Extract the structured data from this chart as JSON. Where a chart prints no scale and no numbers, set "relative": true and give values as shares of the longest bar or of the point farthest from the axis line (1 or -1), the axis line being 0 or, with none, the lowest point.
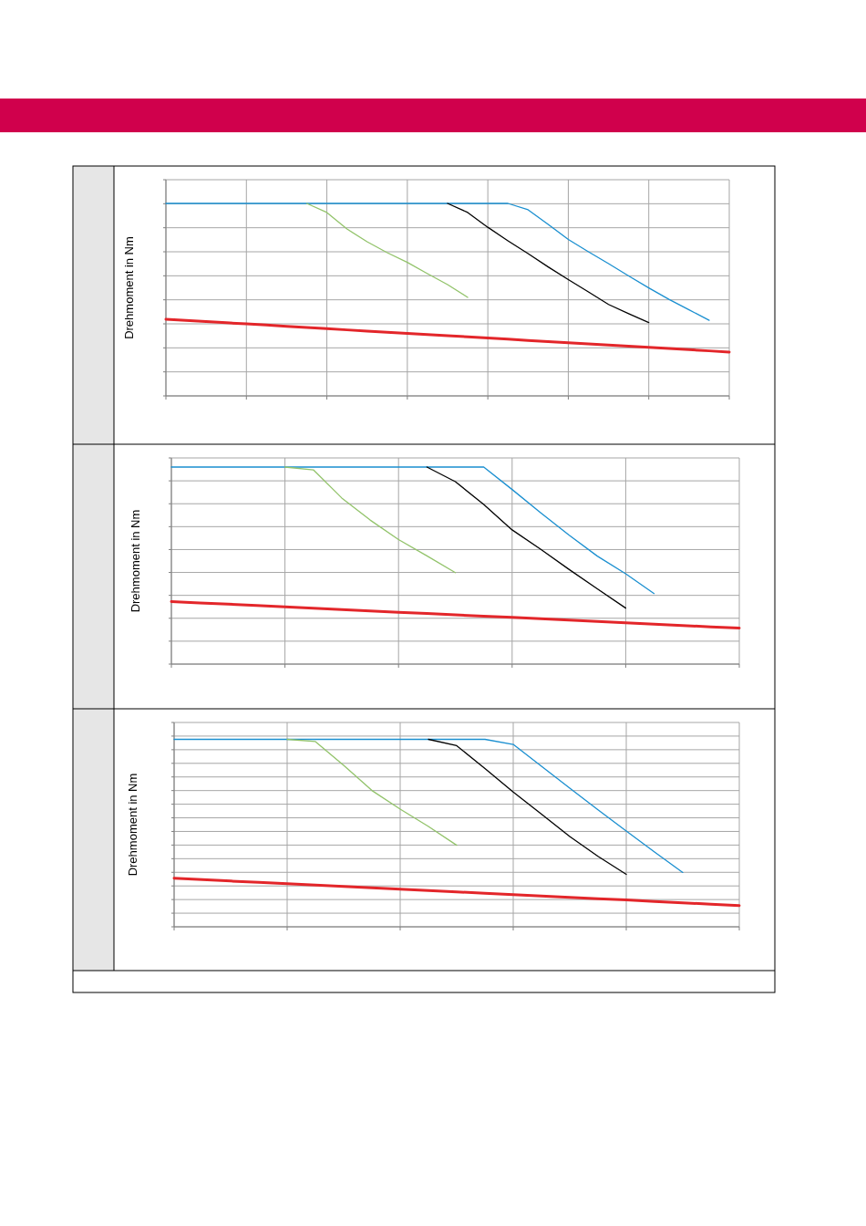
{
  "chart_data": [
    {
      "type": "line",
      "relative": true,
      "ylabel": "Drehmoment in Nm",
      "grid": true,
      "categories": [
        null,
        null,
        null,
        null,
        null,
        null,
        null,
        null,
        null,
        null,
        null,
        null,
        null,
        null,
        null,
        null,
        null,
        null,
        null,
        null,
        null,
        null,
        null,
        null,
        null,
        null,
        null,
        null,
        null
      ],
      "series": [
        {
          "color": "#1a8fd0",
          "values": [
            1,
            1,
            1,
            1,
            1,
            1,
            1,
            1,
            1,
            1,
            1,
            1,
            1,
            1,
            1,
            1,
            1,
            1,
            0.967,
            0.891,
            0.813,
            0.749,
            0.687,
            0.623,
            0.561,
            0.502,
            0.447,
            0.393,
            null
          ]
        },
        {
          "color": "#000000",
          "values": [
            null,
            null,
            null,
            null,
            null,
            null,
            null,
            null,
            null,
            null,
            null,
            null,
            null,
            null,
            1,
            0.953,
            0.876,
            0.806,
            0.739,
            0.67,
            0.604,
            0.54,
            0.475,
            0.427,
            0.381,
            null,
            null,
            null,
            null
          ]
        },
        {
          "color": "#92c36a",
          "values": [
            null,
            null,
            null,
            null,
            null,
            null,
            null,
            1,
            0.953,
            0.867,
            0.801,
            0.744,
            0.694,
            0.635,
            0.578,
            0.512,
            null,
            null,
            null,
            null,
            null,
            null,
            null,
            null,
            null,
            null,
            null,
            null,
            null
          ]
        },
        {
          "color": "#e3262a",
          "values": [
            0.398,
            0.392,
            0.386,
            0.38,
            0.374,
            0.368,
            0.361,
            0.355,
            0.349,
            0.343,
            0.337,
            0.331,
            0.325,
            0.319,
            0.313,
            0.307,
            0.301,
            0.295,
            0.288,
            0.282,
            0.276,
            0.27,
            0.264,
            0.258,
            0.252,
            0.246,
            0.24,
            0.234,
            0.228
          ]
        }
      ]
    },
    {
      "type": "line",
      "relative": true,
      "ylabel": "Drehmoment in Nm",
      "grid": true,
      "categories": [
        null,
        null,
        null,
        null,
        null,
        null,
        null,
        null,
        null,
        null,
        null,
        null,
        null,
        null,
        null,
        null,
        null,
        null,
        null,
        null,
        null
      ],
      "series": [
        {
          "color": "#1a8fd0",
          "values": [
            1,
            1,
            1,
            1,
            1,
            1,
            1,
            1,
            1,
            1,
            1,
            1,
            0.886,
            0.769,
            0.655,
            0.548,
            0.458,
            0.358,
            null,
            null,
            null
          ]
        },
        {
          "color": "#000000",
          "values": [
            null,
            null,
            null,
            null,
            null,
            null,
            null,
            null,
            null,
            1,
            0.926,
            0.81,
            0.681,
            0.583,
            0.481,
            0.382,
            0.284,
            null,
            null,
            null,
            null
          ]
        },
        {
          "color": "#92c36a",
          "values": [
            null,
            null,
            null,
            null,
            1,
            0.986,
            0.843,
            0.731,
            0.632,
            0.549,
            0.464,
            null,
            null,
            null,
            null,
            null,
            null,
            null,
            null,
            null,
            null
          ]
        },
        {
          "color": "#e3262a",
          "values": [
            0.317,
            0.31,
            0.304,
            0.297,
            0.29,
            0.284,
            0.277,
            0.27,
            0.263,
            0.257,
            0.25,
            0.243,
            0.237,
            0.23,
            0.223,
            0.216,
            0.21,
            0.203,
            0.196,
            0.189,
            0.183
          ]
        }
      ]
    },
    {
      "type": "line",
      "relative": true,
      "ylabel": "Drehmoment in Nm",
      "grid": true,
      "categories": [
        null,
        null,
        null,
        null,
        null,
        null,
        null,
        null,
        null,
        null,
        null,
        null,
        null,
        null,
        null,
        null,
        null,
        null,
        null,
        null,
        null
      ],
      "series": [
        {
          "color": "#1a8fd0",
          "values": [
            1,
            1,
            1,
            1,
            1,
            1,
            1,
            1,
            1,
            1,
            1,
            1,
            0.973,
            0.856,
            0.74,
            0.624,
            0.511,
            0.399,
            0.29,
            null,
            null
          ]
        },
        {
          "color": "#000000",
          "values": [
            null,
            null,
            null,
            null,
            null,
            null,
            null,
            null,
            null,
            1,
            0.966,
            0.844,
            0.719,
            0.601,
            0.482,
            0.376,
            0.28,
            null,
            null,
            null,
            null
          ]
        },
        {
          "color": "#92c36a",
          "values": [
            null,
            null,
            null,
            null,
            1,
            0.988,
            0.861,
            0.727,
            0.628,
            0.535,
            0.435,
            null,
            null,
            null,
            null,
            null,
            null,
            null,
            null,
            null,
            null
          ]
        },
        {
          "color": "#e3262a",
          "values": [
            0.259,
            0.252,
            0.244,
            0.237,
            0.23,
            0.223,
            0.215,
            0.208,
            0.201,
            0.193,
            0.186,
            0.179,
            0.172,
            0.164,
            0.157,
            0.15,
            0.143,
            0.135,
            0.128,
            0.121,
            0.113
          ]
        }
      ]
    }
  ]
}
